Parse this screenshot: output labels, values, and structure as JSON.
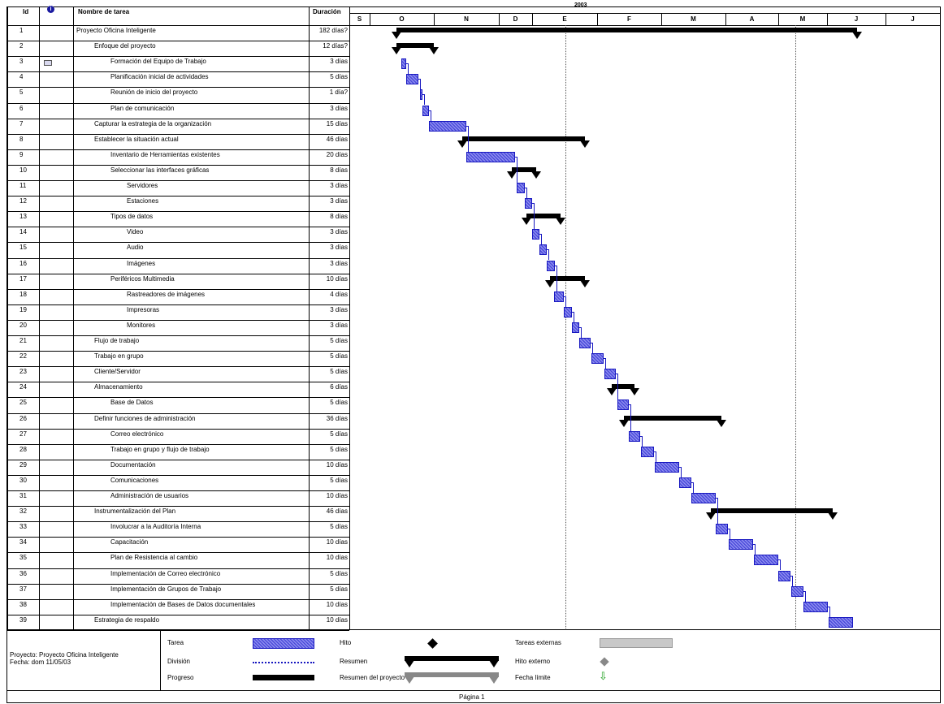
{
  "headers": {
    "id": "Id",
    "info_icon": "info-icon",
    "name": "Nombre de tarea",
    "duration": "Duración"
  },
  "timeline": {
    "year": "2003",
    "months": [
      "S",
      "O",
      "N",
      "D",
      "E",
      "F",
      "M",
      "A",
      "M",
      "J",
      "J"
    ]
  },
  "tasks": [
    {
      "id": "1",
      "name": "Proyecto Oficina Inteligente",
      "duration": "182 días?",
      "level": 0
    },
    {
      "id": "2",
      "name": "Enfoque del proyecto",
      "duration": "12 días?",
      "level": 1
    },
    {
      "id": "3",
      "name": "Formación del Equipo de Trabajo",
      "duration": "3 días",
      "level": 2
    },
    {
      "id": "4",
      "name": "Planificación inicial de actividades",
      "duration": "5 días",
      "level": 2
    },
    {
      "id": "5",
      "name": "Reunión de inicio del proyecto",
      "duration": "1 día?",
      "level": 2
    },
    {
      "id": "6",
      "name": "Plan de comunicación",
      "duration": "3 días",
      "level": 2
    },
    {
      "id": "7",
      "name": "Capturar la estrategia de la organización",
      "duration": "15 días",
      "level": 1
    },
    {
      "id": "8",
      "name": "Establecer la situación actual",
      "duration": "46 días",
      "level": 1
    },
    {
      "id": "9",
      "name": "Inventario de Herramientas existentes",
      "duration": "20 días",
      "level": 2
    },
    {
      "id": "10",
      "name": "Seleccionar las interfaces gráficas",
      "duration": "8 días",
      "level": 2
    },
    {
      "id": "11",
      "name": "Servidores",
      "duration": "3 días",
      "level": 3
    },
    {
      "id": "12",
      "name": "Estaciones",
      "duration": "3 días",
      "level": 3
    },
    {
      "id": "13",
      "name": "Tipos de datos",
      "duration": "8 días",
      "level": 2
    },
    {
      "id": "14",
      "name": "Video",
      "duration": "3 días",
      "level": 3
    },
    {
      "id": "15",
      "name": "Audio",
      "duration": "3 días",
      "level": 3
    },
    {
      "id": "16",
      "name": "Imágenes",
      "duration": "3 días",
      "level": 3
    },
    {
      "id": "17",
      "name": "Periféricos Multimedia",
      "duration": "10 días",
      "level": 2
    },
    {
      "id": "18",
      "name": "Rastreadores de imágenes",
      "duration": "4 días",
      "level": 3
    },
    {
      "id": "19",
      "name": "Impresoras",
      "duration": "3 días",
      "level": 3
    },
    {
      "id": "20",
      "name": "Monitores",
      "duration": "3 días",
      "level": 3
    },
    {
      "id": "21",
      "name": "Flujo de trabajo",
      "duration": "5 días",
      "level": 1
    },
    {
      "id": "22",
      "name": "Trabajo en grupo",
      "duration": "5 días",
      "level": 1
    },
    {
      "id": "23",
      "name": "Cliente/Servidor",
      "duration": "5 días",
      "level": 1
    },
    {
      "id": "24",
      "name": "Almacenamiento",
      "duration": "6 días",
      "level": 1
    },
    {
      "id": "25",
      "name": "Base de Datos",
      "duration": "5 días",
      "level": 2
    },
    {
      "id": "26",
      "name": "Definir funciones de administración",
      "duration": "36 días",
      "level": 1
    },
    {
      "id": "27",
      "name": "Correo electrónico",
      "duration": "5 días",
      "level": 2
    },
    {
      "id": "28",
      "name": "Trabajo en grupo y flujo de trabajo",
      "duration": "5 días",
      "level": 2
    },
    {
      "id": "29",
      "name": "Documentación",
      "duration": "10 días",
      "level": 2
    },
    {
      "id": "30",
      "name": "Comunicaciones",
      "duration": "5 días",
      "level": 2
    },
    {
      "id": "31",
      "name": "Administración de usuarios",
      "duration": "10 días",
      "level": 2
    },
    {
      "id": "32",
      "name": "Instrumentalización del Plan",
      "duration": "46 días",
      "level": 1
    },
    {
      "id": "33",
      "name": "Involucrar a la Auditoría Interna",
      "duration": "5 días",
      "level": 2
    },
    {
      "id": "34",
      "name": "Capacitación",
      "duration": "10 días",
      "level": 2
    },
    {
      "id": "35",
      "name": "Plan de Resistencia al cambio",
      "duration": "10 días",
      "level": 2
    },
    {
      "id": "36",
      "name": "Implementación de Correo electrónico",
      "duration": "5 días",
      "level": 2
    },
    {
      "id": "37",
      "name": "Implementación de Grupos de Trabajo",
      "duration": "5 días",
      "level": 2
    },
    {
      "id": "38",
      "name": "Implementación de Bases de Datos documentales",
      "duration": "10 días",
      "level": 2
    },
    {
      "id": "39",
      "name": "Estrategia de respaldo",
      "duration": "10 días",
      "level": 1
    }
  ],
  "legend": {
    "project": "Proyecto: Proyecto Oficina Inteligente",
    "date": "Fecha: dom 11/05/03",
    "items": {
      "task": "Tarea",
      "split": "División",
      "progress": "Progreso",
      "milestone": "Hito",
      "summary": "Resumen",
      "project_summary": "Resumen del proyecto",
      "external_tasks": "Tareas externas",
      "external_milestone": "Hito externo",
      "deadline": "Fecha límite"
    }
  },
  "footer": {
    "page": "Página 1"
  },
  "colors": {
    "task_fill": "#8e8ef0",
    "task_border": "#1818c0",
    "summary": "#000000",
    "link": "#1818c0"
  }
}
